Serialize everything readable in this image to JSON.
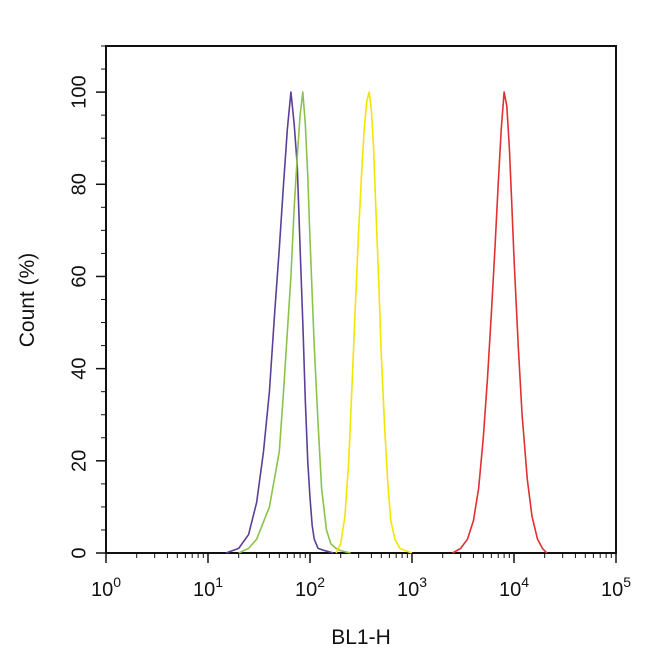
{
  "chart_data": {
    "type": "line",
    "title": "",
    "xlabel": "BL1-H",
    "ylabel": "Count (%)",
    "x_scale": "log",
    "xlim": [
      1,
      100000
    ],
    "ylim": [
      0,
      110
    ],
    "x_ticks": [
      {
        "value": 1,
        "base": "10",
        "exp": "0"
      },
      {
        "value": 10,
        "base": "10",
        "exp": "1"
      },
      {
        "value": 100,
        "base": "10",
        "exp": "2"
      },
      {
        "value": 1000,
        "base": "10",
        "exp": "3"
      },
      {
        "value": 10000,
        "base": "10",
        "exp": "4"
      },
      {
        "value": 100000,
        "base": "10",
        "exp": "5"
      }
    ],
    "y_ticks": [
      0,
      20,
      40,
      60,
      80,
      100
    ],
    "grid": false,
    "series": [
      {
        "color": "#5b3f9a",
        "x": [
          15,
          20,
          25,
          30,
          35,
          40,
          45,
          50,
          55,
          60,
          65,
          70,
          75,
          80,
          85,
          90,
          95,
          100,
          105,
          110,
          120,
          140,
          170
        ],
        "y": [
          0,
          1,
          4,
          11,
          22,
          35,
          52,
          66,
          80,
          92,
          100,
          93,
          84,
          66,
          50,
          33,
          20,
          12,
          6,
          3,
          1,
          0.5,
          0
        ]
      },
      {
        "color": "#8bc34a",
        "x": [
          20,
          25,
          30,
          40,
          50,
          55,
          60,
          65,
          70,
          75,
          80,
          85,
          90,
          95,
          100,
          110,
          120,
          130,
          145,
          160,
          180,
          200,
          250
        ],
        "y": [
          0,
          1,
          3,
          10,
          22,
          35,
          48,
          60,
          75,
          86,
          95,
          100,
          93,
          82,
          68,
          45,
          28,
          14,
          5,
          2,
          1,
          0.5,
          0
        ]
      },
      {
        "color": "#f2e600",
        "x": [
          180,
          200,
          220,
          240,
          260,
          280,
          300,
          320,
          340,
          360,
          380,
          400,
          420,
          440,
          470,
          500,
          540,
          580,
          620,
          680,
          760,
          860,
          1000
        ],
        "y": [
          0,
          2,
          8,
          20,
          38,
          55,
          70,
          82,
          92,
          98,
          100,
          96,
          88,
          76,
          60,
          43,
          27,
          15,
          7,
          3,
          1,
          0.5,
          0
        ]
      },
      {
        "color": "#e03030",
        "x": [
          2500,
          3000,
          3500,
          4000,
          4500,
          5000,
          5500,
          6000,
          6500,
          7000,
          7500,
          8000,
          8500,
          9000,
          9500,
          10000,
          11000,
          12000,
          13500,
          15000,
          17000,
          19000,
          21000
        ],
        "y": [
          0,
          1,
          3,
          7,
          14,
          25,
          38,
          52,
          66,
          80,
          92,
          100,
          97,
          88,
          76,
          64,
          45,
          30,
          16,
          8,
          3,
          1,
          0
        ]
      }
    ]
  }
}
